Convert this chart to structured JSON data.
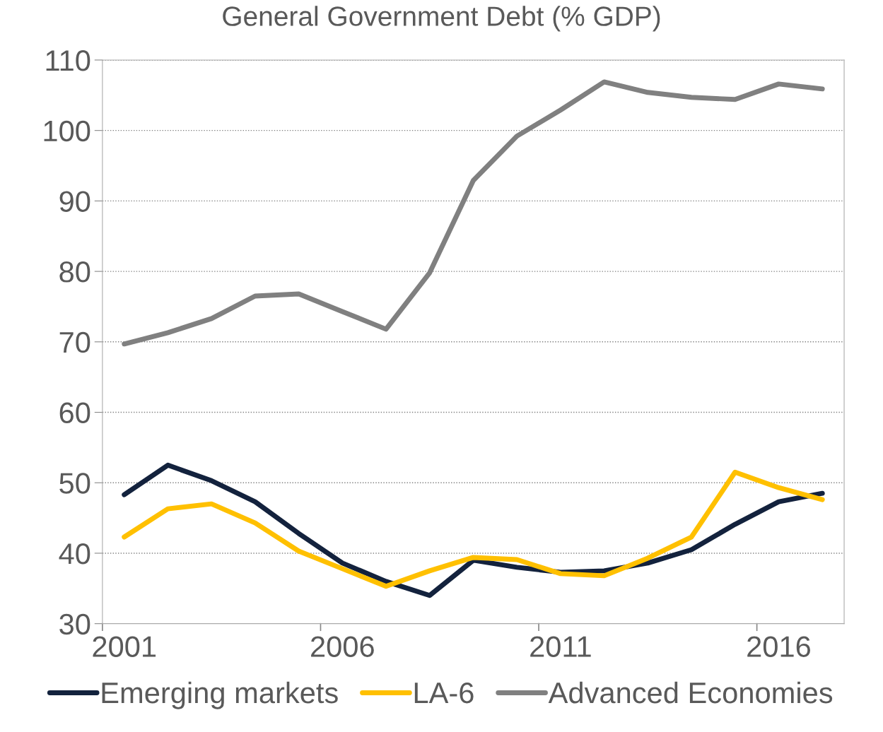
{
  "chart_data": {
    "type": "line",
    "title": "General Government Debt (% GDP)",
    "categories": [
      "2001",
      null,
      null,
      null,
      null,
      "2006",
      null,
      null,
      null,
      null,
      "2011",
      null,
      null,
      null,
      null,
      "2016",
      null
    ],
    "series": [
      {
        "name": "Emerging markets",
        "color": "#13223d",
        "values": [
          48.3,
          52.5,
          50.3,
          47.3,
          42.8,
          38.6,
          36.0,
          34.0,
          39.0,
          38.0,
          37.3,
          37.5,
          38.6,
          40.5,
          44.1,
          47.3,
          48.5
        ]
      },
      {
        "name": "LA-6",
        "color": "#ffc000",
        "values": [
          42.3,
          46.3,
          47.0,
          44.3,
          40.3,
          37.8,
          35.3,
          37.5,
          39.4,
          39.1,
          37.1,
          36.8,
          39.3,
          42.3,
          51.5,
          49.3,
          47.6
        ]
      },
      {
        "name": "Advanced Economies",
        "color": "#808080",
        "values": [
          69.7,
          71.3,
          73.3,
          76.5,
          76.8,
          74.3,
          71.8,
          79.8,
          92.9,
          99.2,
          102.9,
          106.9,
          105.4,
          104.7,
          104.4,
          106.6,
          105.9
        ]
      }
    ],
    "ylim": [
      30,
      110
    ],
    "yticks": [
      30,
      40,
      50,
      60,
      70,
      80,
      90,
      100,
      110
    ],
    "grid": "y",
    "legend": "bottom",
    "marker": "none",
    "line_style": "solid"
  }
}
